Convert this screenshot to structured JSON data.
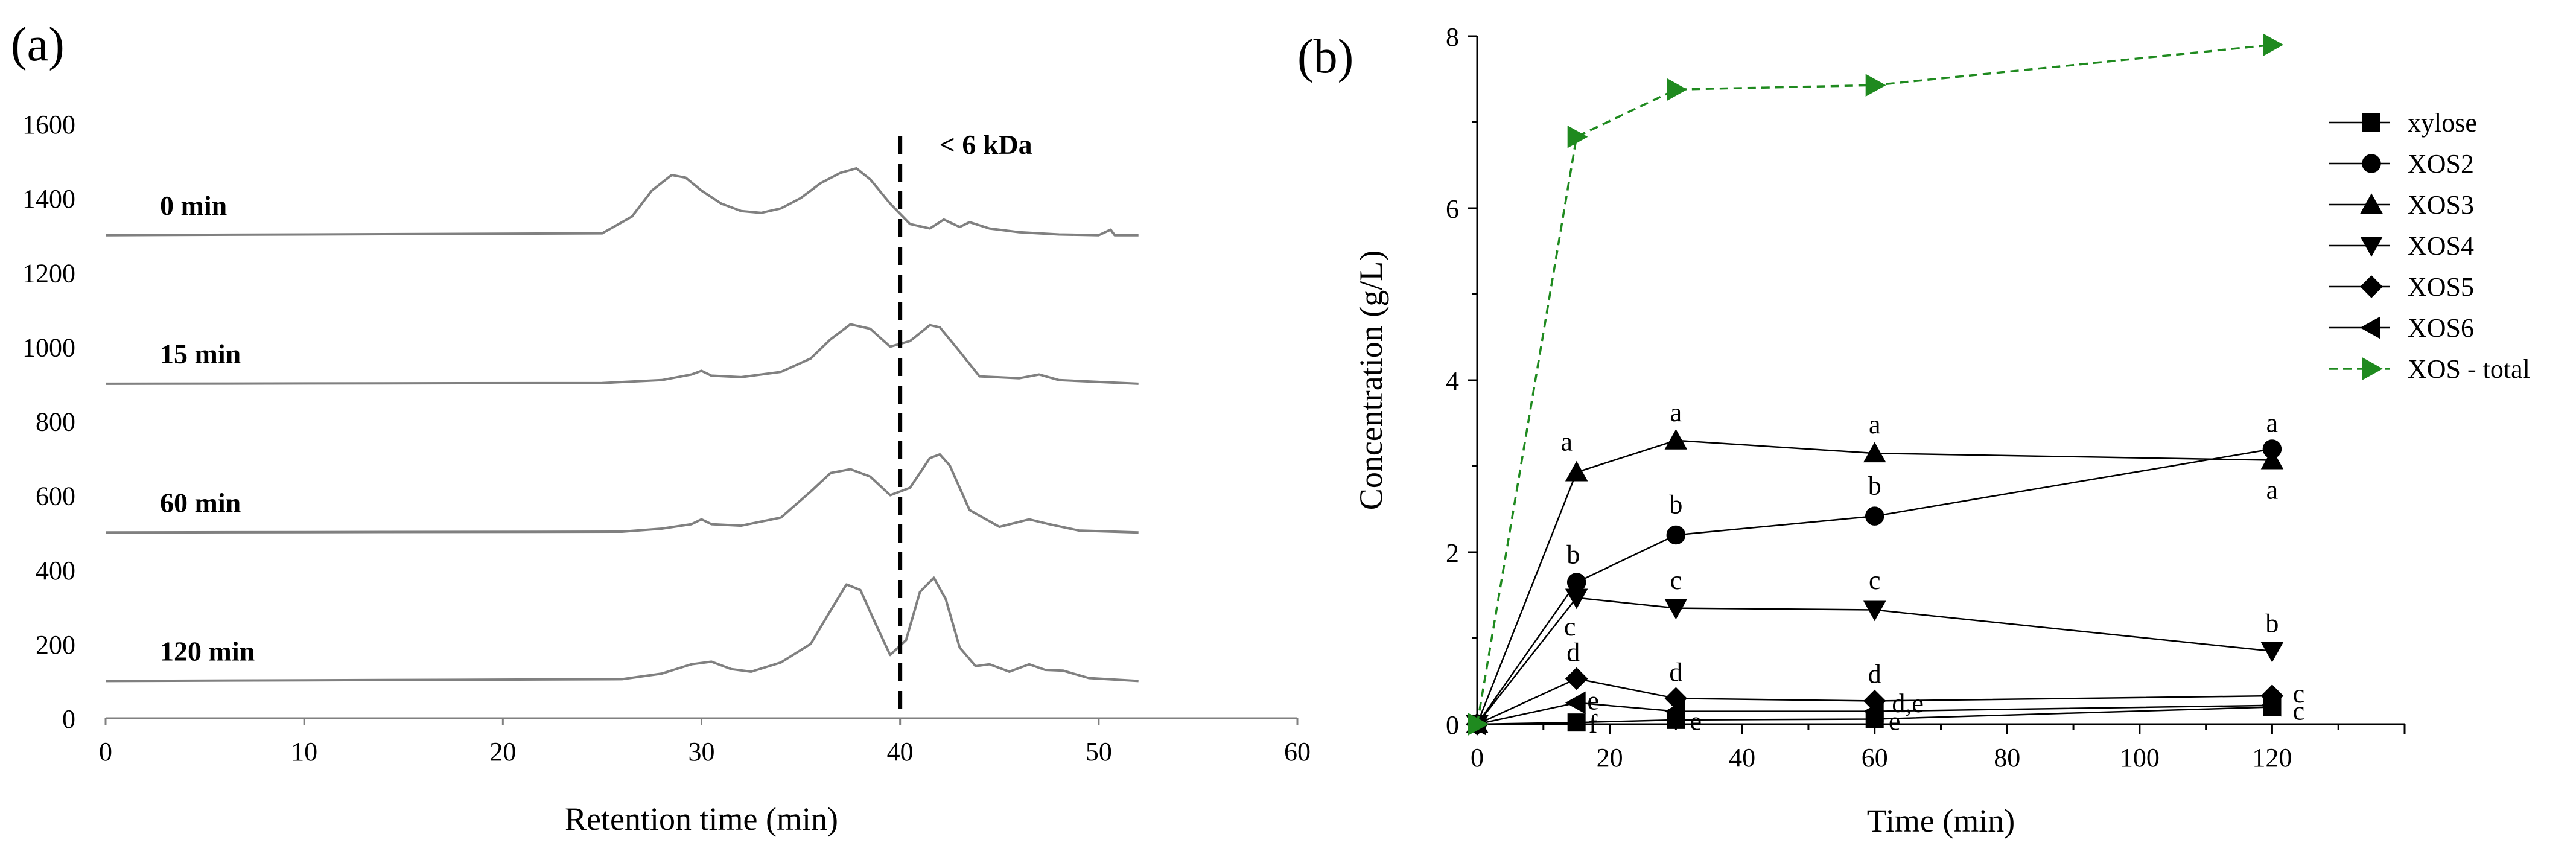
{
  "chart_data": [
    {
      "panel_label": "(a)",
      "type": "line",
      "xlabel": "Retention time (min)",
      "ylabel": "",
      "xlim": [
        0,
        60
      ],
      "ylim": [
        0,
        1600
      ],
      "xticks": [
        0,
        10,
        20,
        30,
        40,
        50,
        60
      ],
      "yticks": [
        0,
        200,
        400,
        600,
        800,
        1000,
        1200,
        1400,
        1600
      ],
      "grid": false,
      "line_color": "#808080",
      "cutoff": {
        "x": 40,
        "label": "< 6 kDa",
        "style": "dashed",
        "color": "#000000"
      },
      "series": [
        {
          "name": "0 min",
          "baseline": 1300,
          "x": [
            0,
            25,
            26.5,
            27.5,
            28.5,
            29.2,
            30,
            31,
            32,
            33,
            34,
            35,
            36,
            37,
            37.8,
            38.5,
            39.5,
            40.5,
            41.5,
            42.2,
            43,
            43.5,
            44.5,
            46,
            48,
            50,
            50.6,
            50.8,
            52
          ],
          "y": [
            1300,
            1305,
            1350,
            1420,
            1462,
            1455,
            1420,
            1385,
            1365,
            1360,
            1372,
            1400,
            1440,
            1468,
            1480,
            1450,
            1385,
            1330,
            1318,
            1342,
            1322,
            1335,
            1318,
            1308,
            1302,
            1300,
            1315,
            1300,
            1300
          ]
        },
        {
          "name": "15 min",
          "baseline": 900,
          "x": [
            0,
            25,
            28,
            29.5,
            30,
            30.5,
            32,
            34,
            35.5,
            36.5,
            37.5,
            38.5,
            39.5,
            40.5,
            41.5,
            42,
            42.8,
            44,
            46,
            47,
            48,
            50,
            52
          ],
          "y": [
            900,
            902,
            910,
            925,
            935,
            922,
            918,
            932,
            968,
            1020,
            1060,
            1048,
            1000,
            1015,
            1058,
            1052,
            1000,
            920,
            915,
            925,
            910,
            905,
            900
          ]
        },
        {
          "name": "60 min",
          "baseline": 500,
          "x": [
            0,
            26,
            28,
            29.5,
            30,
            30.5,
            32,
            34,
            35.5,
            36.5,
            37.5,
            38.5,
            39.5,
            40.5,
            41.5,
            42,
            42.5,
            43.5,
            45,
            46.5,
            47.5,
            49,
            52
          ],
          "y": [
            500,
            502,
            510,
            522,
            535,
            522,
            518,
            540,
            610,
            660,
            670,
            650,
            600,
            620,
            700,
            710,
            680,
            560,
            515,
            535,
            522,
            505,
            500
          ]
        },
        {
          "name": "120 min",
          "baseline": 100,
          "x": [
            0,
            26,
            28,
            29.5,
            30.5,
            31.5,
            32.5,
            34,
            35.5,
            36.5,
            37.3,
            38,
            38.8,
            39.5,
            40.3,
            41,
            41.7,
            42.3,
            43,
            43.8,
            44.5,
            45.5,
            46.5,
            47.3,
            48.2,
            49.5,
            52
          ],
          "y": [
            100,
            105,
            120,
            145,
            152,
            132,
            125,
            150,
            200,
            290,
            360,
            345,
            250,
            170,
            210,
            340,
            378,
            320,
            190,
            140,
            145,
            125,
            145,
            130,
            128,
            108,
            100
          ]
        }
      ]
    },
    {
      "panel_label": "(b)",
      "type": "line",
      "xlabel": "Time (min)",
      "ylabel": "Concentration (g/L)",
      "xlim": [
        0,
        140
      ],
      "ylim": [
        0,
        8
      ],
      "xticks": [
        0,
        20,
        40,
        60,
        80,
        100,
        120
      ],
      "yticks": [
        0,
        2,
        4,
        6,
        8
      ],
      "grid": false,
      "legend_position": "top-right",
      "x": [
        0,
        15,
        30,
        60,
        120
      ],
      "series": [
        {
          "name": "xylose",
          "marker": "square",
          "color": "#000000",
          "line": "solid",
          "values": [
            0,
            0.02,
            0.05,
            0.06,
            0.2
          ]
        },
        {
          "name": "XOS2",
          "marker": "circle",
          "color": "#000000",
          "line": "solid",
          "values": [
            0,
            1.65,
            2.2,
            2.42,
            3.2
          ]
        },
        {
          "name": "XOS3",
          "marker": "triangle-up",
          "color": "#000000",
          "line": "solid",
          "values": [
            0,
            2.93,
            3.3,
            3.15,
            3.07
          ]
        },
        {
          "name": "XOS4",
          "marker": "triangle-down",
          "color": "#000000",
          "line": "solid",
          "values": [
            0,
            1.47,
            1.35,
            1.33,
            0.85
          ]
        },
        {
          "name": "XOS5",
          "marker": "diamond",
          "color": "#000000",
          "line": "solid",
          "values": [
            0,
            0.53,
            0.3,
            0.27,
            0.33
          ]
        },
        {
          "name": "XOS6",
          "marker": "triangle-left",
          "color": "#000000",
          "line": "solid",
          "values": [
            0,
            0.25,
            0.15,
            0.15,
            0.22
          ]
        },
        {
          "name": "XOS - total",
          "marker": "triangle-right",
          "color": "#1f8a1f",
          "line": "dashed",
          "values": [
            0,
            6.83,
            7.38,
            7.43,
            7.9
          ]
        }
      ],
      "annotations": [
        {
          "text": "a",
          "x": 13.5,
          "y": 3.28
        },
        {
          "text": "a",
          "x": 30,
          "y": 3.62
        },
        {
          "text": "a",
          "x": 60,
          "y": 3.48
        },
        {
          "text": "a",
          "x": 120,
          "y": 3.5
        },
        {
          "text": "a",
          "x": 120,
          "y": 2.72
        },
        {
          "text": "b",
          "x": 14.5,
          "y": 1.97
        },
        {
          "text": "b",
          "x": 30,
          "y": 2.55
        },
        {
          "text": "b",
          "x": 60,
          "y": 2.77
        },
        {
          "text": "b",
          "x": 120,
          "y": 1.17
        },
        {
          "text": "c",
          "x": 14,
          "y": 1.13
        },
        {
          "text": "c",
          "x": 30,
          "y": 1.67
        },
        {
          "text": "c",
          "x": 60,
          "y": 1.67
        },
        {
          "text": "c",
          "x": 124,
          "y": 0.35
        },
        {
          "text": "c",
          "x": 124,
          "y": 0.15
        },
        {
          "text": "d",
          "x": 14.5,
          "y": 0.83
        },
        {
          "text": "d",
          "x": 30,
          "y": 0.6
        },
        {
          "text": "d",
          "x": 60,
          "y": 0.58
        },
        {
          "text": "d,e",
          "x": 65,
          "y": 0.24
        },
        {
          "text": "e",
          "x": 17.5,
          "y": 0.27
        },
        {
          "text": "e",
          "x": 33,
          "y": 0.03
        },
        {
          "text": "e",
          "x": 63,
          "y": 0.03
        },
        {
          "text": "f",
          "x": 17.5,
          "y": 0.0
        }
      ]
    }
  ]
}
